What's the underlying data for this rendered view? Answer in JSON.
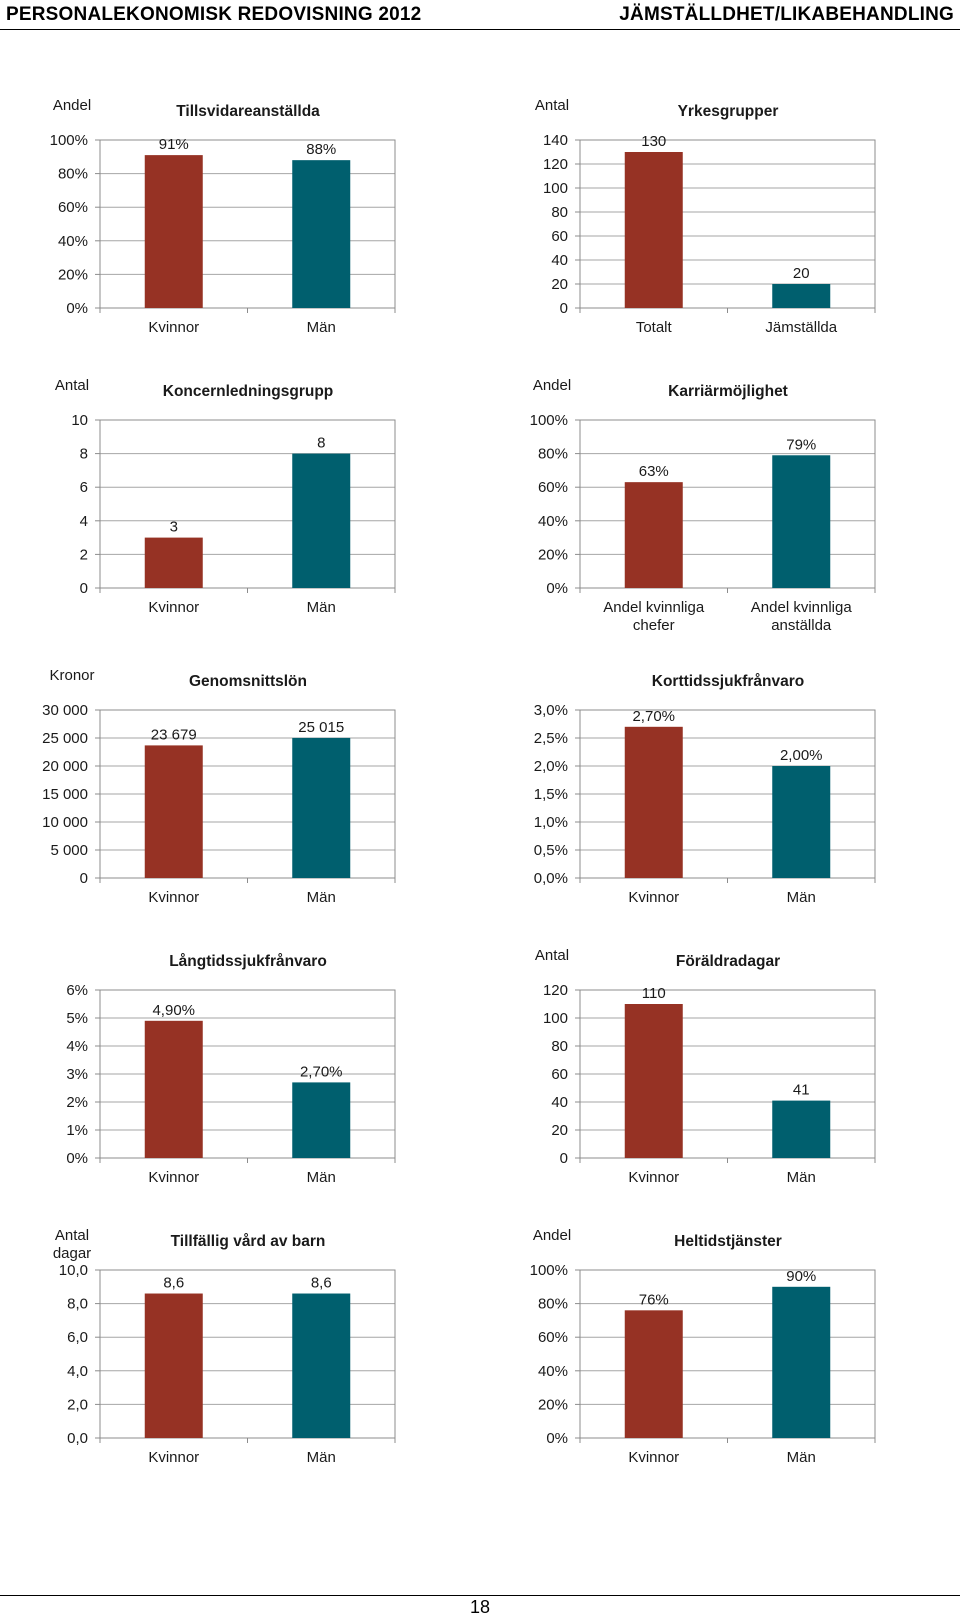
{
  "page": {
    "header_left": "PERSONALEKONOMISK REDOVISNING 2012",
    "header_right": "JÄMSTÄLLDHET/LIKABEHANDLING",
    "page_number": "18"
  },
  "colors": {
    "women": "#963224",
    "men": "#005f6e",
    "grid": "#a6a6a6",
    "border": "#8c8c8c"
  },
  "chart_data": [
    {
      "type": "bar",
      "title": "Tillsvidareanställda",
      "ylabel": [
        "Andel"
      ],
      "categories": [
        "Kvinnor",
        "Män"
      ],
      "values": [
        91,
        88
      ],
      "value_labels": [
        "91%",
        "88%"
      ],
      "ylim": [
        0,
        100
      ],
      "yticks": [
        0,
        20,
        40,
        60,
        80,
        100
      ],
      "ytick_labels": [
        "0%",
        "20%",
        "40%",
        "60%",
        "80%",
        "100%"
      ],
      "grid": true
    },
    {
      "type": "bar",
      "title": "Yrkesgrupper",
      "ylabel": [
        "Antal"
      ],
      "categories": [
        "Totalt",
        "Jämställda"
      ],
      "values": [
        130,
        20
      ],
      "value_labels": [
        "130",
        "20"
      ],
      "ylim": [
        0,
        140
      ],
      "yticks": [
        0,
        20,
        40,
        60,
        80,
        100,
        120,
        140
      ],
      "ytick_labels": [
        "0",
        "20",
        "40",
        "60",
        "80",
        "100",
        "120",
        "140"
      ],
      "grid": true
    },
    {
      "type": "bar",
      "title": "Koncernledningsgrupp",
      "ylabel": [
        "Antal"
      ],
      "categories": [
        "Kvinnor",
        "Män"
      ],
      "values": [
        3,
        8
      ],
      "value_labels": [
        "3",
        "8"
      ],
      "ylim": [
        0,
        10
      ],
      "yticks": [
        0,
        2,
        4,
        6,
        8,
        10
      ],
      "ytick_labels": [
        "0",
        "2",
        "4",
        "6",
        "8",
        "10"
      ],
      "grid": true
    },
    {
      "type": "bar",
      "title": "Karriärmöjlighet",
      "ylabel": [
        "Andel"
      ],
      "categories": [
        [
          "Andel kvinnliga",
          "chefer"
        ],
        [
          "Andel kvinnliga",
          "anställda"
        ]
      ],
      "values": [
        63,
        79
      ],
      "value_labels": [
        "63%",
        "79%"
      ],
      "ylim": [
        0,
        100
      ],
      "yticks": [
        0,
        20,
        40,
        60,
        80,
        100
      ],
      "ytick_labels": [
        "0%",
        "20%",
        "40%",
        "60%",
        "80%",
        "100%"
      ],
      "grid": true
    },
    {
      "type": "bar",
      "title": "Genomsnittslön",
      "ylabel": [
        "Kronor"
      ],
      "categories": [
        "Kvinnor",
        "Män"
      ],
      "values": [
        23679,
        25015
      ],
      "value_labels": [
        "23 679",
        "25 015"
      ],
      "ylim": [
        0,
        30000
      ],
      "yticks": [
        0,
        5000,
        10000,
        15000,
        20000,
        25000,
        30000
      ],
      "ytick_labels": [
        "0",
        "5 000",
        "10 000",
        "15 000",
        "20 000",
        "25 000",
        "30 000"
      ],
      "grid": true
    },
    {
      "type": "bar",
      "title": "Korttidssjukfrånvaro",
      "ylabel": [],
      "categories": [
        "Kvinnor",
        "Män"
      ],
      "values": [
        2.7,
        2.0
      ],
      "value_labels": [
        "2,70%",
        "2,00%"
      ],
      "ylim": [
        0,
        3
      ],
      "yticks": [
        0,
        0.5,
        1,
        1.5,
        2,
        2.5,
        3
      ],
      "ytick_labels": [
        "0,0%",
        "0,5%",
        "1,0%",
        "1,5%",
        "2,0%",
        "2,5%",
        "3,0%"
      ],
      "grid": true
    },
    {
      "type": "bar",
      "title": "Långtidssjukfrånvaro",
      "ylabel": [],
      "categories": [
        "Kvinnor",
        "Män"
      ],
      "values": [
        4.9,
        2.7
      ],
      "value_labels": [
        "4,90%",
        "2,70%"
      ],
      "ylim": [
        0,
        6
      ],
      "yticks": [
        0,
        1,
        2,
        3,
        4,
        5,
        6
      ],
      "ytick_labels": [
        "0%",
        "1%",
        "2%",
        "3%",
        "4%",
        "5%",
        "6%"
      ],
      "grid": true
    },
    {
      "type": "bar",
      "title": "Föräldradagar",
      "ylabel": [
        "Antal"
      ],
      "categories": [
        "Kvinnor",
        "Män"
      ],
      "values": [
        110,
        41
      ],
      "value_labels": [
        "110",
        "41"
      ],
      "ylim": [
        0,
        120
      ],
      "yticks": [
        0,
        20,
        40,
        60,
        80,
        100,
        120
      ],
      "ytick_labels": [
        "0",
        "20",
        "40",
        "60",
        "80",
        "100",
        "120"
      ],
      "grid": true
    },
    {
      "type": "bar",
      "title": "Tillfällig vård av barn",
      "ylabel": [
        "Antal",
        "dagar"
      ],
      "categories": [
        "Kvinnor",
        "Män"
      ],
      "values": [
        8.6,
        8.6
      ],
      "value_labels": [
        "8,6",
        "8,6"
      ],
      "ylim": [
        0,
        10
      ],
      "yticks": [
        0,
        2,
        4,
        6,
        8,
        10
      ],
      "ytick_labels": [
        "0,0",
        "2,0",
        "4,0",
        "6,0",
        "8,0",
        "10,0"
      ],
      "grid": true
    },
    {
      "type": "bar",
      "title": "Heltidstjänster",
      "ylabel": [
        "Andel"
      ],
      "categories": [
        "Kvinnor",
        "Män"
      ],
      "values": [
        76,
        90
      ],
      "value_labels": [
        "76%",
        "90%"
      ],
      "ylim": [
        0,
        100
      ],
      "yticks": [
        0,
        20,
        40,
        60,
        80,
        100
      ],
      "ytick_labels": [
        "0%",
        "20%",
        "40%",
        "60%",
        "80%",
        "100%"
      ],
      "grid": true
    }
  ]
}
